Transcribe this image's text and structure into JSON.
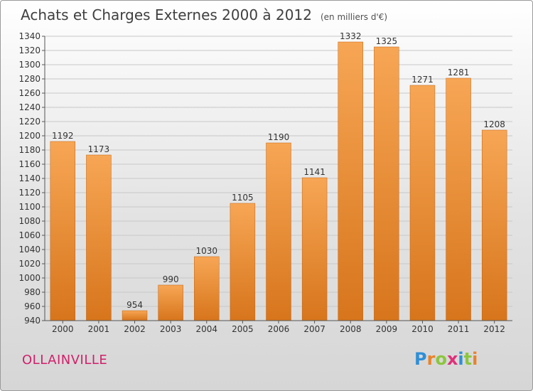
{
  "header": {
    "title": "Achats et Charges Externes 2000 à 2012",
    "unit": "(en milliers d'€)"
  },
  "footer": {
    "commune": "OLLAINVILLE",
    "brand": "Proxiti",
    "brand_letters": [
      {
        "ch": "P",
        "color": "#2e8fd6"
      },
      {
        "ch": "r",
        "color": "#e8832a"
      },
      {
        "ch": "o",
        "color": "#8cc63f"
      },
      {
        "ch": "x",
        "color": "#e0307a"
      },
      {
        "ch": "i",
        "color": "#2e8fd6"
      },
      {
        "ch": "t",
        "color": "#8cc63f"
      },
      {
        "ch": "i",
        "color": "#e8832a"
      }
    ]
  },
  "chart_data": {
    "type": "bar",
    "title": "Achats et Charges Externes 2000 à 2012",
    "subtitle": "(en milliers d'€)",
    "xlabel": "",
    "ylabel": "",
    "categories": [
      "2000",
      "2001",
      "2002",
      "2003",
      "2004",
      "2005",
      "2006",
      "2007",
      "2008",
      "2009",
      "2010",
      "2011",
      "2012"
    ],
    "values": [
      1192,
      1173,
      954,
      990,
      1030,
      1105,
      1190,
      1141,
      1332,
      1325,
      1271,
      1281,
      1208
    ],
    "ylim": [
      940,
      1340
    ],
    "ytick_step": 20,
    "grid": true,
    "legend": "none",
    "colors": {
      "bar_light": "#f7a655",
      "bar_dark": "#d7751c",
      "bar_edge": "#c2600f",
      "grid": "#c8c8c8",
      "axis": "#555555"
    }
  }
}
